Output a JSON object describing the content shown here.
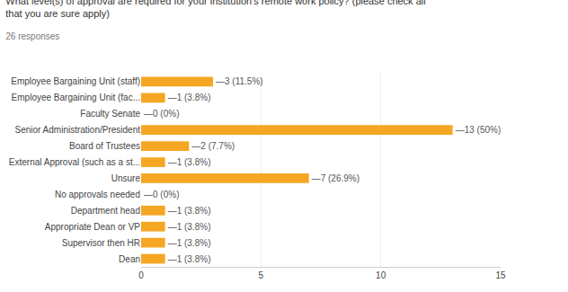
{
  "chart_data": {
    "type": "bar",
    "orientation": "horizontal",
    "title": "What level(s) of approval are required for your institution's remote work policy? (please check all\nthat you are sure apply)",
    "subtitle": "26 responses",
    "categories": [
      "Employee Bargaining Unit (staff)",
      "Employee Bargaining Unit (fac...",
      "Faculty Senate",
      "Senior Administration/President",
      "Board of Trustees",
      "External Approval (such as a st...",
      "Unsure",
      "No approvals needed",
      "Department head",
      "Appropriate Dean or VP",
      "Supervisor then HR",
      "Dean"
    ],
    "values": [
      3,
      1,
      0,
      13,
      2,
      1,
      7,
      0,
      1,
      1,
      1,
      1
    ],
    "value_labels": [
      "—3 (11.5%)",
      "—1 (3.8%)",
      "—0 (0%)",
      "—13 (50%)",
      "—2 (7.7%)",
      "—1 (3.8%)",
      "—7 (26.9%)",
      "—0 (0%)",
      "—1 (3.8%)",
      "—1 (3.8%)",
      "—1 (3.8%)",
      "—1 (3.8%)"
    ],
    "data_labels": true,
    "color": "#f5a623",
    "xlim": [
      0,
      15
    ],
    "xticks": [
      0,
      5,
      10,
      15
    ],
    "grid": true
  }
}
